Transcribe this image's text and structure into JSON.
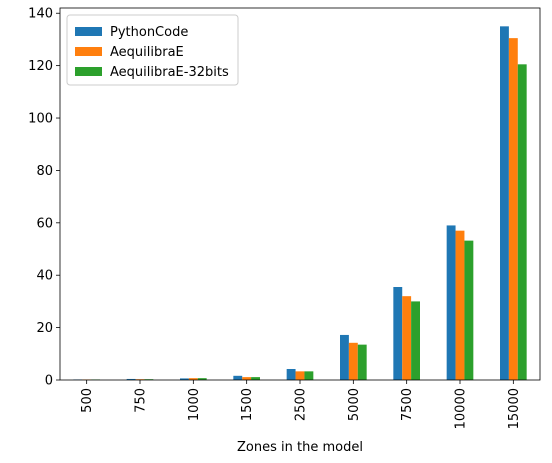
{
  "chart_data": {
    "type": "bar",
    "title": "",
    "xlabel": "Zones in the model",
    "ylabel": "",
    "categories": [
      "500",
      "750",
      "1000",
      "1500",
      "2500",
      "5000",
      "7500",
      "10000",
      "15000"
    ],
    "ylim": [
      0,
      142
    ],
    "yticks": [
      0,
      20,
      40,
      60,
      80,
      100,
      120,
      140
    ],
    "grid": false,
    "legend_position": "top-left",
    "series": [
      {
        "name": "PythonCode",
        "color": "#1f77b4",
        "values": [
          0.2,
          0.4,
          0.6,
          1.6,
          4.2,
          17.2,
          35.5,
          59.0,
          135.0
        ]
      },
      {
        "name": "AequilibraE",
        "color": "#ff7f0e",
        "values": [
          0.2,
          0.3,
          0.7,
          1.1,
          3.3,
          14.2,
          32.0,
          57.0,
          130.5
        ]
      },
      {
        "name": "AequilibraE-32bits",
        "color": "#2ca02c",
        "values": [
          0.2,
          0.3,
          0.7,
          1.1,
          3.3,
          13.5,
          30.0,
          53.2,
          120.5
        ]
      }
    ]
  }
}
